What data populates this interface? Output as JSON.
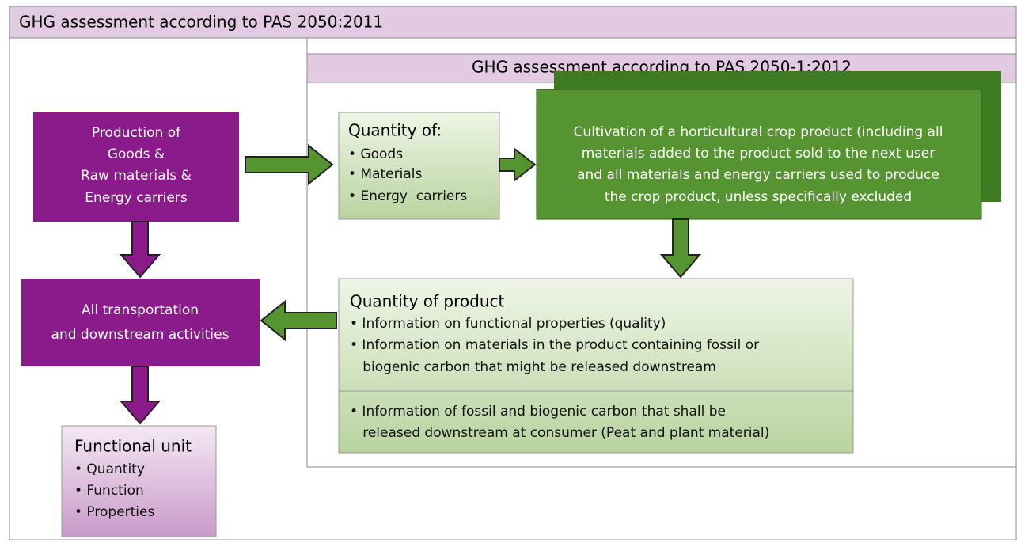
{
  "outer_title": "GHG assessment according to PAS 2050:2011",
  "inner_title": "GHG assessment according to PAS 2050-1:2012",
  "production": {
    "lines": [
      "Production of",
      "Goods &",
      "Raw materials &",
      "Energy carriers"
    ]
  },
  "transport": {
    "lines": [
      "All transportation",
      "and downstream activities"
    ]
  },
  "functional_unit": {
    "title": "Functional unit",
    "items": [
      "• Quantity",
      "• Function",
      "• Properties"
    ]
  },
  "quantity_of": {
    "title": "Quantity of:",
    "items": [
      "• Goods",
      "• Materials",
      "• Energy  carriers"
    ]
  },
  "cultivation": {
    "lines": [
      "Cultivation of a horticultural crop product (including all",
      "materials added to the product sold to the next user",
      "and all materials and energy carriers used to produce",
      "the crop product, unless specifically excluded"
    ]
  },
  "quantity_product": {
    "title": "Quantity of product",
    "items": [
      "• Information on functional properties (quality)",
      "• Information on materials in the product containing fossil or",
      "   biogenic carbon that might be released downstream"
    ],
    "extra": [
      "• Information of fossil and biogenic carbon that shall be",
      "   released downstream at consumer (Peat and plant material)"
    ]
  }
}
